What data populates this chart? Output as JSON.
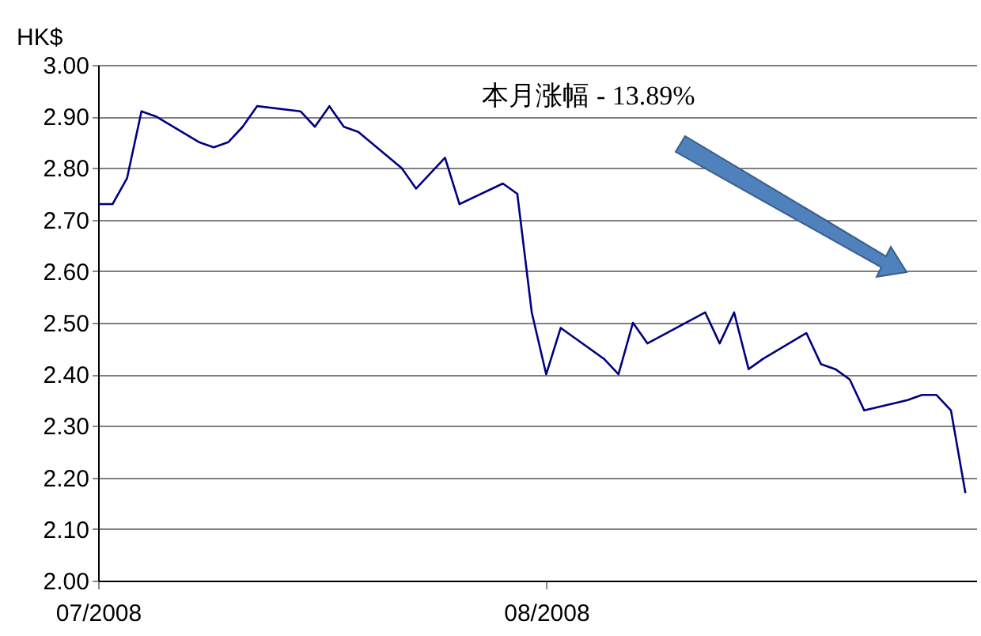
{
  "chart_data": {
    "type": "line",
    "ylabel": "HK$",
    "annotations": [
      "本月涨幅 - 13.89%"
    ],
    "x": [
      "2008-07-01",
      "2008-07-02",
      "2008-07-03",
      "2008-07-04",
      "2008-07-05",
      "2008-07-08",
      "2008-07-09",
      "2008-07-10",
      "2008-07-11",
      "2008-07-12",
      "2008-07-15",
      "2008-07-16",
      "2008-07-17",
      "2008-07-18",
      "2008-07-19",
      "2008-07-22",
      "2008-07-23",
      "2008-07-25",
      "2008-07-26",
      "2008-07-29",
      "2008-07-30",
      "2008-07-31",
      "2008-08-01",
      "2008-08-02",
      "2008-08-05",
      "2008-08-06",
      "2008-08-07",
      "2008-08-08",
      "2008-08-12",
      "2008-08-13",
      "2008-08-14",
      "2008-08-15",
      "2008-08-16",
      "2008-08-19",
      "2008-08-20",
      "2008-08-21",
      "2008-08-22",
      "2008-08-23",
      "2008-08-26",
      "2008-08-27",
      "2008-08-28",
      "2008-08-29",
      "2008-08-30"
    ],
    "series": [
      {
        "color": "#000080",
        "values": [
          2.73,
          2.73,
          2.78,
          2.91,
          2.9,
          2.85,
          2.84,
          2.85,
          2.88,
          2.92,
          2.91,
          2.88,
          2.92,
          2.88,
          2.87,
          2.8,
          2.76,
          2.82,
          2.73,
          2.77,
          2.75,
          2.52,
          2.4,
          2.49,
          2.43,
          2.4,
          2.5,
          2.46,
          2.52,
          2.46,
          2.52,
          2.41,
          2.43,
          2.48,
          2.42,
          2.41,
          2.39,
          2.33,
          2.35,
          2.36,
          2.36,
          2.33,
          2.17
        ]
      }
    ],
    "xlim": [
      "2008-07-01",
      "2008-08-30T18:00"
    ],
    "xticks": [
      {
        "value": "2008-07-01",
        "label": "07/2008"
      },
      {
        "value": "2008-08-01",
        "label": "08/2008"
      }
    ],
    "ylim": [
      2,
      3
    ],
    "yticks": [
      {
        "value": 2,
        "label": "2.00"
      },
      {
        "value": 2.1,
        "label": "2.10"
      },
      {
        "value": 2.2,
        "label": "2.20"
      },
      {
        "value": 2.3,
        "label": "2.30"
      },
      {
        "value": 2.4,
        "label": "2.40"
      },
      {
        "value": 2.5,
        "label": "2.50"
      },
      {
        "value": 2.6,
        "label": "2.60"
      },
      {
        "value": 2.7,
        "label": "2.70"
      },
      {
        "value": 2.8,
        "label": "2.80"
      },
      {
        "value": 2.9,
        "label": "2.90"
      },
      {
        "value": 3,
        "label": "3.00"
      }
    ],
    "grid": "y",
    "marker": "none",
    "line_style": "solid"
  }
}
